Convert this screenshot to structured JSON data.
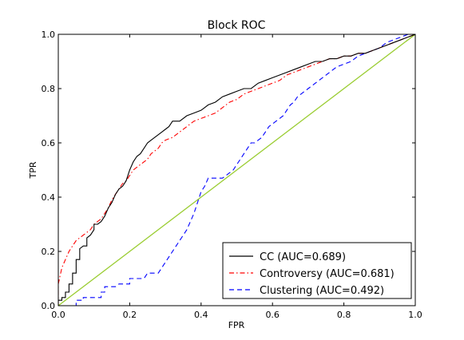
{
  "chart_data": {
    "type": "line",
    "title": "Block ROC",
    "xlabel": "FPR",
    "ylabel": "TPR",
    "xlim": [
      0.0,
      1.0
    ],
    "ylim": [
      0.0,
      1.0
    ],
    "xticks": [
      "0.0",
      "0.2",
      "0.4",
      "0.6",
      "0.8",
      "1.0"
    ],
    "yticks": [
      "0.0",
      "0.2",
      "0.4",
      "0.6",
      "0.8",
      "1.0"
    ],
    "grid": false,
    "legend_position": "bottom-right",
    "series": [
      {
        "name": "CC (AUC=0.689)",
        "color": "#000000",
        "dash": "solid",
        "x": [
          0.0,
          0.0,
          0.01,
          0.01,
          0.02,
          0.02,
          0.03,
          0.03,
          0.04,
          0.04,
          0.05,
          0.05,
          0.06,
          0.06,
          0.07,
          0.08,
          0.08,
          0.09,
          0.1,
          0.1,
          0.11,
          0.12,
          0.13,
          0.14,
          0.15,
          0.16,
          0.17,
          0.18,
          0.19,
          0.2,
          0.21,
          0.22,
          0.23,
          0.24,
          0.25,
          0.26,
          0.27,
          0.28,
          0.29,
          0.3,
          0.31,
          0.32,
          0.34,
          0.36,
          0.38,
          0.4,
          0.42,
          0.44,
          0.46,
          0.48,
          0.5,
          0.52,
          0.54,
          0.56,
          0.58,
          0.6,
          0.62,
          0.64,
          0.66,
          0.68,
          0.7,
          0.72,
          0.74,
          0.76,
          0.78,
          0.8,
          0.82,
          0.84,
          0.86,
          0.88,
          0.9,
          0.92,
          0.94,
          0.96,
          0.98,
          1.0
        ],
        "y": [
          0.0,
          0.02,
          0.02,
          0.03,
          0.03,
          0.05,
          0.05,
          0.08,
          0.08,
          0.12,
          0.12,
          0.17,
          0.17,
          0.21,
          0.22,
          0.22,
          0.25,
          0.26,
          0.28,
          0.3,
          0.3,
          0.31,
          0.33,
          0.36,
          0.38,
          0.41,
          0.43,
          0.44,
          0.46,
          0.5,
          0.53,
          0.55,
          0.56,
          0.58,
          0.6,
          0.61,
          0.62,
          0.63,
          0.64,
          0.65,
          0.66,
          0.68,
          0.68,
          0.7,
          0.71,
          0.72,
          0.74,
          0.75,
          0.77,
          0.78,
          0.79,
          0.8,
          0.8,
          0.82,
          0.83,
          0.84,
          0.85,
          0.86,
          0.87,
          0.88,
          0.89,
          0.9,
          0.9,
          0.91,
          0.91,
          0.92,
          0.92,
          0.93,
          0.93,
          0.94,
          0.95,
          0.96,
          0.97,
          0.98,
          0.99,
          1.0
        ]
      },
      {
        "name": "Controversy (AUC=0.681)",
        "color": "#ff0000",
        "dash": "dashdot",
        "x": [
          0.0,
          0.0,
          0.01,
          0.02,
          0.03,
          0.04,
          0.05,
          0.06,
          0.07,
          0.08,
          0.09,
          0.1,
          0.11,
          0.12,
          0.13,
          0.14,
          0.15,
          0.16,
          0.17,
          0.18,
          0.19,
          0.2,
          0.21,
          0.22,
          0.23,
          0.24,
          0.25,
          0.26,
          0.27,
          0.28,
          0.29,
          0.3,
          0.32,
          0.34,
          0.36,
          0.38,
          0.4,
          0.42,
          0.44,
          0.46,
          0.48,
          0.5,
          0.52,
          0.54,
          0.56,
          0.58,
          0.6,
          0.62,
          0.64,
          0.66,
          0.68,
          0.7,
          0.72,
          0.74,
          0.76,
          0.78,
          0.8,
          0.82,
          0.84,
          0.86,
          0.88,
          0.9,
          0.92,
          0.94,
          0.96,
          0.98,
          1.0
        ],
        "y": [
          0.0,
          0.08,
          0.14,
          0.17,
          0.2,
          0.22,
          0.24,
          0.25,
          0.26,
          0.27,
          0.28,
          0.3,
          0.31,
          0.32,
          0.34,
          0.36,
          0.39,
          0.41,
          0.43,
          0.45,
          0.46,
          0.48,
          0.5,
          0.51,
          0.52,
          0.53,
          0.54,
          0.56,
          0.57,
          0.58,
          0.6,
          0.61,
          0.62,
          0.64,
          0.66,
          0.68,
          0.69,
          0.7,
          0.71,
          0.73,
          0.75,
          0.76,
          0.78,
          0.79,
          0.8,
          0.81,
          0.82,
          0.83,
          0.85,
          0.86,
          0.87,
          0.88,
          0.89,
          0.9,
          0.91,
          0.91,
          0.92,
          0.92,
          0.93,
          0.93,
          0.94,
          0.95,
          0.96,
          0.97,
          0.98,
          0.99,
          1.0
        ]
      },
      {
        "name": "Clustering (AUC=0.492)",
        "color": "#0000ff",
        "dash": "dashed",
        "x": [
          0.0,
          0.0,
          0.05,
          0.05,
          0.07,
          0.07,
          0.12,
          0.12,
          0.13,
          0.13,
          0.16,
          0.17,
          0.2,
          0.2,
          0.24,
          0.25,
          0.28,
          0.29,
          0.3,
          0.31,
          0.32,
          0.33,
          0.34,
          0.35,
          0.36,
          0.37,
          0.38,
          0.39,
          0.4,
          0.41,
          0.42,
          0.43,
          0.46,
          0.47,
          0.48,
          0.49,
          0.5,
          0.51,
          0.52,
          0.53,
          0.54,
          0.55,
          0.56,
          0.57,
          0.58,
          0.59,
          0.6,
          0.61,
          0.62,
          0.63,
          0.64,
          0.65,
          0.66,
          0.67,
          0.68,
          0.69,
          0.7,
          0.72,
          0.74,
          0.76,
          0.78,
          0.8,
          0.82,
          0.84,
          0.86,
          0.88,
          0.9,
          0.92,
          0.94,
          0.96,
          0.98,
          1.0
        ],
        "y": [
          0.0,
          0.0,
          0.0,
          0.02,
          0.02,
          0.03,
          0.03,
          0.05,
          0.05,
          0.07,
          0.07,
          0.08,
          0.08,
          0.1,
          0.1,
          0.12,
          0.12,
          0.14,
          0.16,
          0.18,
          0.2,
          0.22,
          0.24,
          0.26,
          0.28,
          0.31,
          0.34,
          0.38,
          0.42,
          0.44,
          0.47,
          0.47,
          0.47,
          0.48,
          0.49,
          0.5,
          0.52,
          0.54,
          0.56,
          0.58,
          0.6,
          0.6,
          0.61,
          0.62,
          0.64,
          0.66,
          0.67,
          0.68,
          0.69,
          0.7,
          0.72,
          0.74,
          0.75,
          0.77,
          0.78,
          0.79,
          0.8,
          0.82,
          0.84,
          0.86,
          0.88,
          0.89,
          0.9,
          0.92,
          0.93,
          0.94,
          0.95,
          0.97,
          0.98,
          0.99,
          1.0,
          1.0
        ]
      },
      {
        "name": "",
        "color": "#9acd32",
        "dash": "solid",
        "x": [
          0.0,
          1.0
        ],
        "y": [
          0.0,
          1.0
        ]
      }
    ]
  }
}
